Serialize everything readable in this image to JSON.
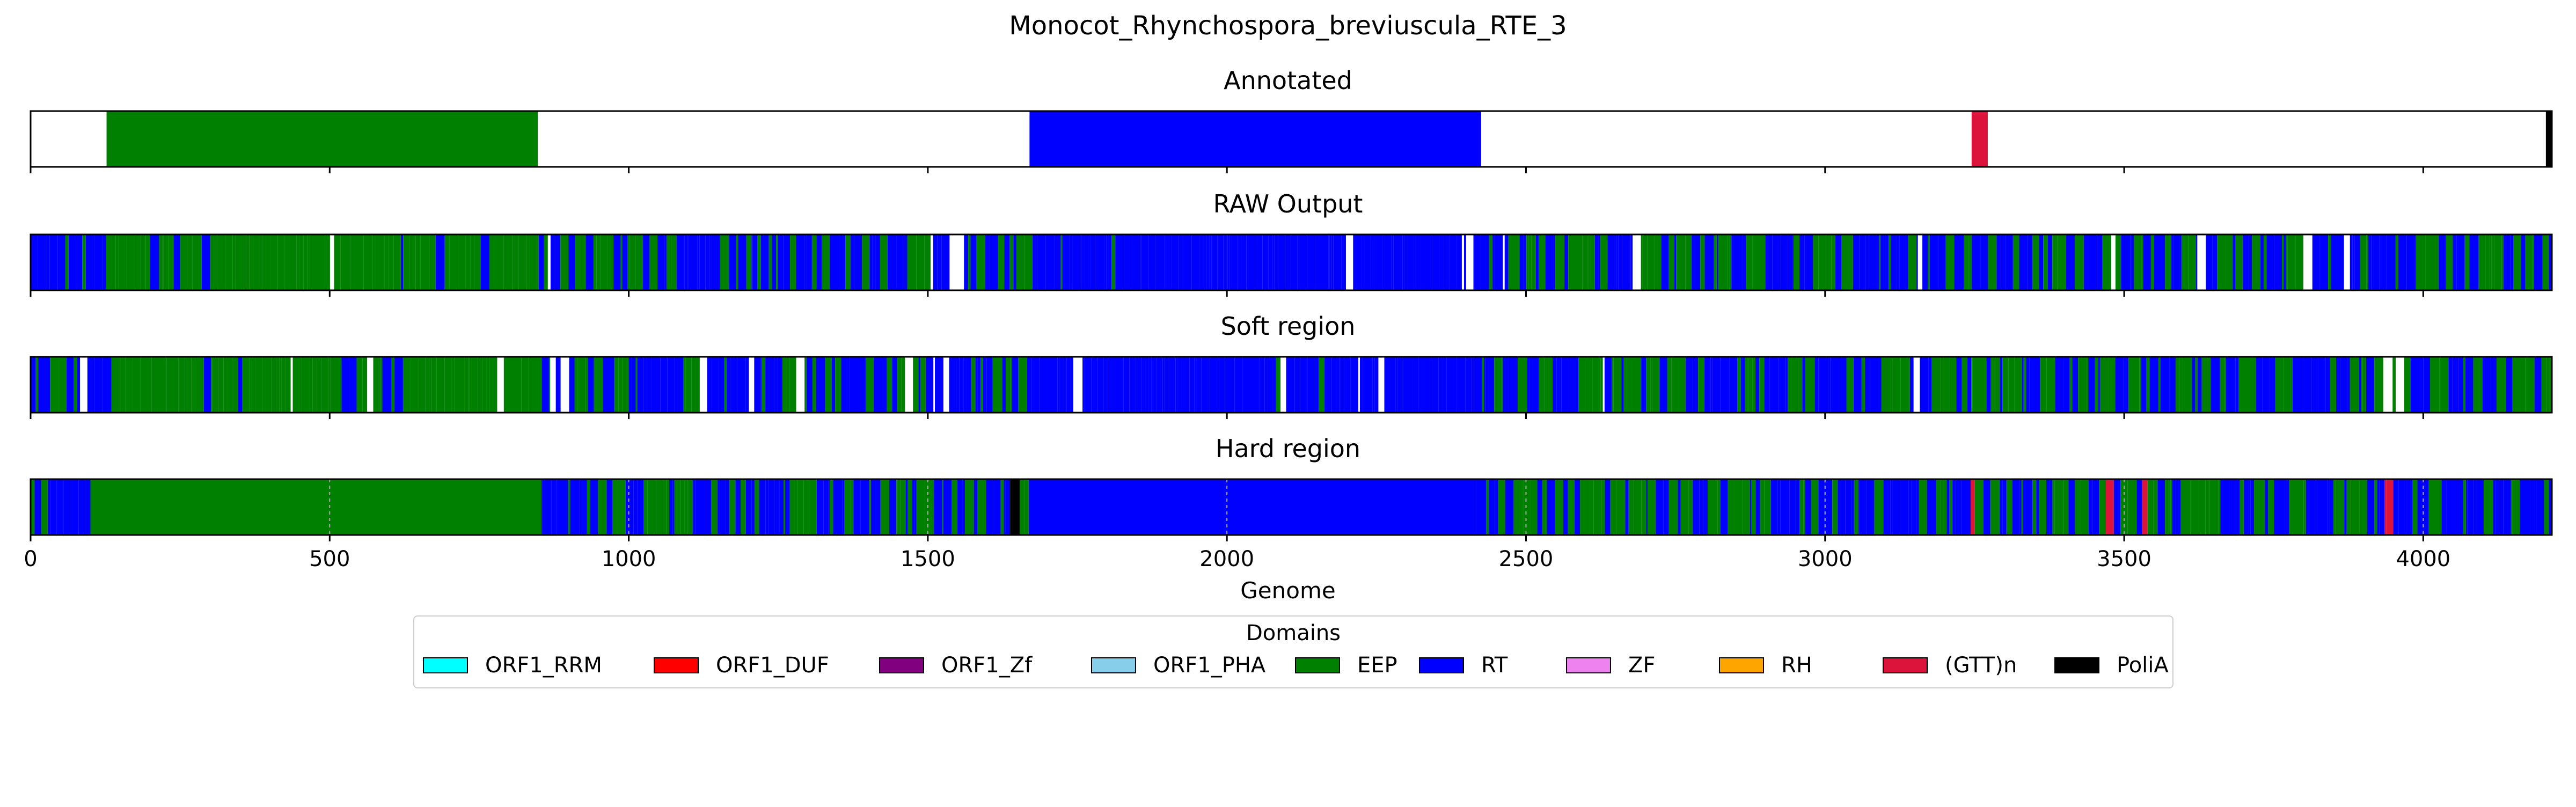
{
  "chart_data": {
    "type": "bar",
    "title": "Monocot_Rhynchospora_breviuscula_RTE_3",
    "xlabel": "Genome",
    "xlim": [
      0,
      4215
    ],
    "xticks": [
      0,
      500,
      1000,
      1500,
      2000,
      2500,
      3000,
      3500,
      4000
    ],
    "tracks": [
      {
        "name": "Annotated",
        "segments": [
          {
            "start": 127,
            "end": 848,
            "domain": "EEP"
          },
          {
            "start": 1670,
            "end": 2425,
            "domain": "RT"
          },
          {
            "start": 3245,
            "end": 3272,
            "domain": "(GTT)n"
          },
          {
            "start": 4205,
            "end": 4215,
            "domain": "PoliA"
          }
        ]
      },
      {
        "name": "RAW Output",
        "segments": []
      },
      {
        "name": "Soft region",
        "segments": []
      },
      {
        "name": "Hard region",
        "segments": []
      }
    ],
    "legend": {
      "title": "Domains",
      "placement": "lower-center",
      "items": [
        {
          "label": "ORF1_RRM",
          "color": "#00ffff"
        },
        {
          "label": "ORF1_DUF",
          "color": "#ff0000"
        },
        {
          "label": "ORF1_Zf",
          "color": "#800080"
        },
        {
          "label": "ORF1_PHA",
          "color": "#87ceeb"
        },
        {
          "label": "EEP",
          "color": "#008000"
        },
        {
          "label": "RT",
          "color": "#0000ff"
        },
        {
          "label": "ZF",
          "color": "#ee82ee"
        },
        {
          "label": "RH",
          "color": "#ffa500"
        },
        {
          "label": "(GTT)n",
          "color": "#dc143c"
        },
        {
          "label": "PoliA",
          "color": "#000000"
        }
      ]
    }
  }
}
